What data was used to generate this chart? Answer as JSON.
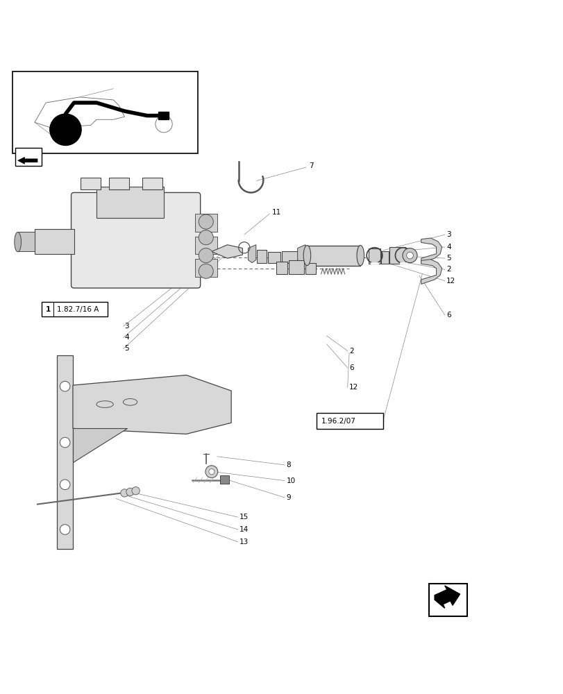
{
  "bg_color": "#ffffff",
  "line_color": "#000000",
  "gray_color": "#888888",
  "light_gray": "#cccccc",
  "fig_width": 8.12,
  "fig_height": 10.0,
  "dpi": 100
}
